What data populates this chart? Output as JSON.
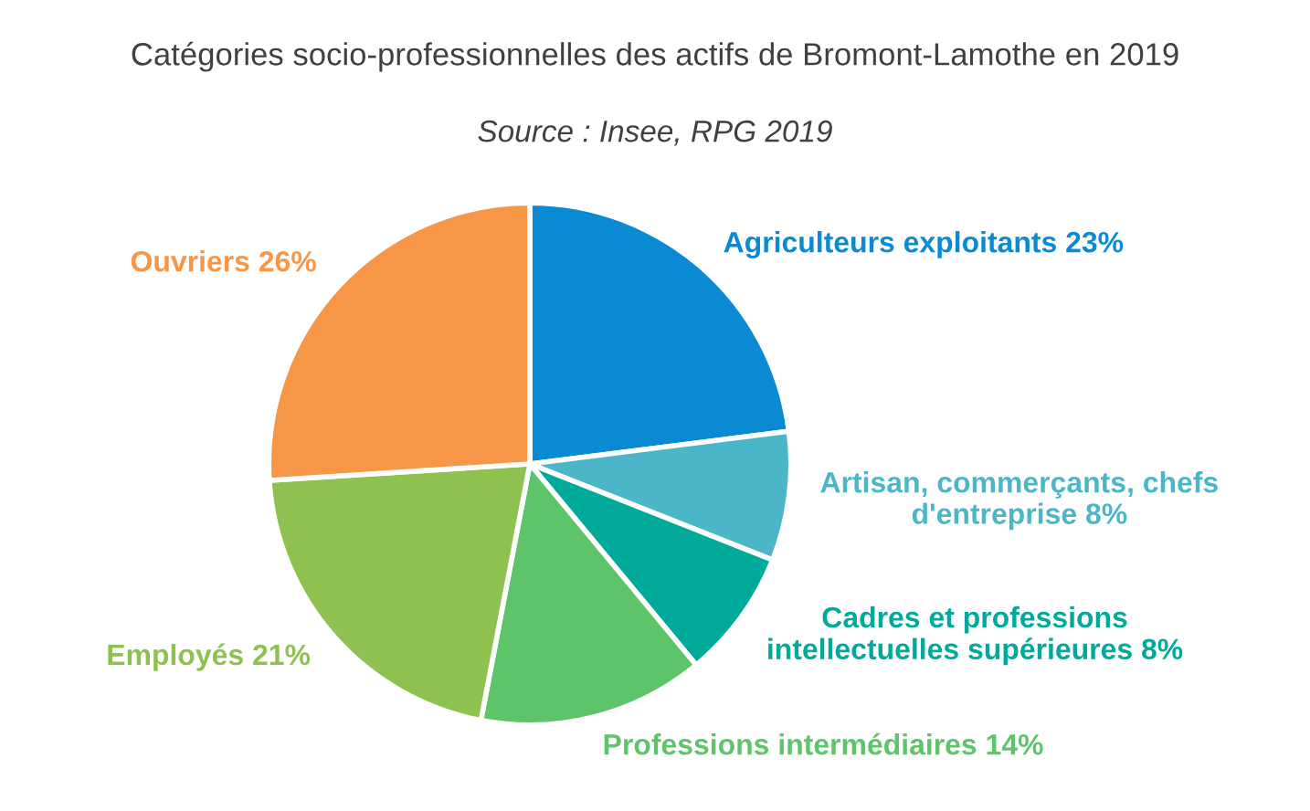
{
  "chart_data": {
    "type": "pie",
    "title": "Catégories socio-professionnelles des actifs de Bromont-Lamothe en 2019",
    "subtitle": "Source : Insee, RPG 2019",
    "categories": [
      "Agriculteurs exploitants",
      "Artisan, commerçants, chefs\nd'entreprise",
      "Cadres et professions\nintellectuelles supérieures",
      "Professions intermédiaires",
      "Employés",
      "Ouvriers"
    ],
    "values": [
      23,
      8,
      8,
      14,
      21,
      26
    ],
    "value_labels": [
      "23%",
      "8%",
      "8%",
      "14%",
      "21%",
      "26%"
    ],
    "colors": [
      "#0a8ad2",
      "#4bb6c8",
      "#00aa9a",
      "#5ec46a",
      "#8fc150",
      "#f79646"
    ]
  }
}
